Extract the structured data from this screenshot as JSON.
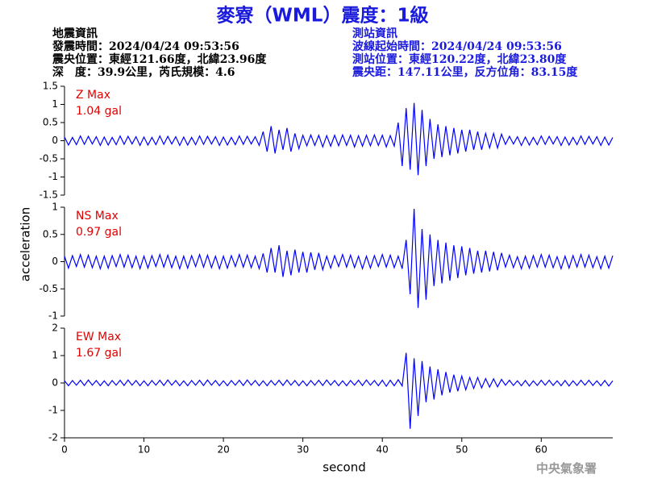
{
  "header": {
    "title": "麥寮（WML）震度：1級",
    "event": [
      "地震資訊",
      "發震時間：2024/04/24 09:53:56",
      "震央位置：東經121.66度，北緯23.96度",
      "深　度：39.9公里，芮氏規模：4.6"
    ],
    "station": [
      "測站資訊",
      "波線起始時間：2024/04/24 09:53:56",
      "測站位置：東經120.22度，北緯23.80度",
      "震央距：147.11公里，反方位角：83.15度"
    ]
  },
  "footer": "中央氣象署",
  "chart_data": [
    {
      "type": "line",
      "label": "Z Max",
      "max_label": "1.04 gal",
      "color": "#0000ff",
      "xlim": [
        0,
        69
      ],
      "ylim": [
        -1.5,
        1.5
      ],
      "yticks": [
        -1.5,
        -1,
        -0.5,
        0,
        0.5,
        1,
        1.5
      ],
      "x": [
        0,
        0.5,
        1,
        1.5,
        2,
        2.5,
        3,
        3.5,
        4,
        4.5,
        5,
        5.5,
        6,
        6.5,
        7,
        7.5,
        8,
        8.5,
        9,
        9.5,
        10,
        10.5,
        11,
        11.5,
        12,
        12.5,
        13,
        13.5,
        14,
        14.5,
        15,
        15.5,
        16,
        16.5,
        17,
        17.5,
        18,
        18.5,
        19,
        19.5,
        20,
        20.5,
        21,
        21.5,
        22,
        22.5,
        23,
        23.5,
        24,
        24.5,
        25,
        25.5,
        26,
        26.5,
        27,
        27.5,
        28,
        28.5,
        29,
        29.5,
        30,
        30.5,
        31,
        31.5,
        32,
        32.5,
        33,
        33.5,
        34,
        34.5,
        35,
        35.5,
        36,
        36.5,
        37,
        37.5,
        38,
        38.5,
        39,
        39.5,
        40,
        40.5,
        41,
        41.5,
        42,
        42.5,
        43,
        43.5,
        44,
        44.5,
        45,
        45.5,
        46,
        46.5,
        47,
        47.5,
        48,
        48.5,
        49,
        49.5,
        50,
        50.5,
        51,
        51.5,
        52,
        52.5,
        53,
        53.5,
        54,
        54.5,
        55,
        55.5,
        56,
        56.5,
        57,
        57.5,
        58,
        58.5,
        59,
        59.5,
        60,
        60.5,
        61,
        61.5,
        62,
        62.5,
        63,
        63.5,
        64,
        64.5,
        65,
        65.5,
        66,
        66.5,
        67,
        67.5,
        68,
        68.5,
        69
      ],
      "values": [
        0.1,
        -0.12,
        0.09,
        -0.11,
        0.13,
        -0.1,
        0.12,
        -0.09,
        0.11,
        -0.13,
        0.1,
        -0.12,
        0.09,
        -0.11,
        0.13,
        -0.1,
        0.12,
        -0.09,
        0.11,
        -0.13,
        0.1,
        -0.12,
        0.09,
        -0.11,
        0.13,
        -0.1,
        0.12,
        -0.09,
        0.11,
        -0.13,
        0.1,
        -0.12,
        0.09,
        -0.11,
        0.13,
        -0.1,
        0.12,
        -0.09,
        0.11,
        -0.13,
        0.1,
        -0.12,
        0.09,
        -0.11,
        0.13,
        -0.1,
        0.12,
        -0.09,
        0.11,
        -0.13,
        0.25,
        -0.3,
        0.4,
        -0.35,
        0.3,
        -0.25,
        0.35,
        -0.3,
        0.2,
        -0.22,
        0.15,
        -0.14,
        0.16,
        -0.13,
        0.15,
        -0.17,
        0.14,
        -0.15,
        0.15,
        -0.14,
        0.16,
        -0.13,
        0.15,
        -0.17,
        0.14,
        -0.15,
        0.15,
        -0.14,
        0.16,
        -0.13,
        0.15,
        -0.17,
        0.14,
        -0.15,
        0.5,
        -0.7,
        0.9,
        -0.8,
        1.04,
        -0.95,
        0.85,
        -0.7,
        0.6,
        -0.5,
        0.45,
        -0.45,
        0.4,
        -0.4,
        0.35,
        -0.35,
        0.3,
        -0.3,
        0.3,
        -0.25,
        0.25,
        -0.25,
        0.2,
        -0.2,
        0.2,
        -0.2,
        0.18,
        -0.1,
        0.12,
        -0.09,
        0.11,
        -0.13,
        0.1,
        -0.12,
        0.09,
        -0.11,
        0.13,
        -0.1,
        0.12,
        -0.09,
        0.11,
        -0.13,
        0.1,
        -0.12,
        0.09,
        -0.11,
        0.13,
        -0.1,
        0.12,
        -0.09,
        0.11,
        -0.13,
        0.1,
        -0.12,
        0.09
      ]
    },
    {
      "type": "line",
      "label": "NS Max",
      "max_label": "0.97 gal",
      "color": "#0000ff",
      "ylabel": "acceleration",
      "xlim": [
        0,
        69
      ],
      "ylim": [
        -1,
        1
      ],
      "yticks": [
        -1,
        -0.5,
        0,
        0.5,
        1
      ],
      "x": [
        0,
        0.5,
        1,
        1.5,
        2,
        2.5,
        3,
        3.5,
        4,
        4.5,
        5,
        5.5,
        6,
        6.5,
        7,
        7.5,
        8,
        8.5,
        9,
        9.5,
        10,
        10.5,
        11,
        11.5,
        12,
        12.5,
        13,
        13.5,
        14,
        14.5,
        15,
        15.5,
        16,
        16.5,
        17,
        17.5,
        18,
        18.5,
        19,
        19.5,
        20,
        20.5,
        21,
        21.5,
        22,
        22.5,
        23,
        23.5,
        24,
        24.5,
        25,
        25.5,
        26,
        26.5,
        27,
        27.5,
        28,
        28.5,
        29,
        29.5,
        30,
        30.5,
        31,
        31.5,
        32,
        32.5,
        33,
        33.5,
        34,
        34.5,
        35,
        35.5,
        36,
        36.5,
        37,
        37.5,
        38,
        38.5,
        39,
        39.5,
        40,
        40.5,
        41,
        41.5,
        42,
        42.5,
        43,
        43.5,
        44,
        44.5,
        45,
        45.5,
        46,
        46.5,
        47,
        47.5,
        48,
        48.5,
        49,
        49.5,
        50,
        50.5,
        51,
        51.5,
        52,
        52.5,
        53,
        53.5,
        54,
        54.5,
        55,
        55.5,
        56,
        56.5,
        57,
        57.5,
        58,
        58.5,
        59,
        59.5,
        60,
        60.5,
        61,
        61.5,
        62,
        62.5,
        63,
        63.5,
        64,
        64.5,
        65,
        65.5,
        66,
        66.5,
        67,
        67.5,
        68,
        68.5,
        69
      ],
      "values": [
        0.1,
        -0.12,
        0.11,
        -0.09,
        0.13,
        -0.1,
        0.12,
        -0.11,
        0.1,
        -0.13,
        0.1,
        -0.12,
        0.11,
        -0.09,
        0.13,
        -0.1,
        0.12,
        -0.11,
        0.1,
        -0.13,
        0.1,
        -0.12,
        0.11,
        -0.09,
        0.13,
        -0.1,
        0.12,
        -0.11,
        0.1,
        -0.13,
        0.1,
        -0.12,
        0.11,
        -0.09,
        0.13,
        -0.1,
        0.12,
        -0.11,
        0.1,
        -0.13,
        0.1,
        -0.12,
        0.11,
        -0.09,
        0.13,
        -0.1,
        0.12,
        -0.11,
        0.1,
        -0.13,
        0.15,
        -0.2,
        0.25,
        -0.2,
        0.3,
        -0.28,
        0.2,
        -0.25,
        0.22,
        -0.2,
        0.18,
        -0.2,
        0.17,
        -0.15,
        0.16,
        -0.15,
        0.1,
        -0.12,
        0.11,
        -0.09,
        0.13,
        -0.1,
        0.12,
        -0.11,
        0.1,
        -0.13,
        0.1,
        -0.12,
        0.11,
        -0.09,
        0.13,
        -0.1,
        0.12,
        -0.11,
        0.1,
        -0.13,
        0.4,
        -0.6,
        0.97,
        -0.85,
        0.6,
        -0.7,
        0.5,
        -0.45,
        0.4,
        -0.4,
        0.35,
        -0.35,
        0.3,
        -0.3,
        0.28,
        -0.25,
        0.25,
        -0.22,
        0.2,
        -0.2,
        0.2,
        -0.18,
        0.18,
        -0.16,
        0.16,
        -0.1,
        0.12,
        -0.11,
        0.09,
        -0.13,
        0.1,
        -0.12,
        0.11,
        -0.1,
        0.13,
        -0.1,
        0.12,
        -0.11,
        0.09,
        -0.13,
        0.1,
        -0.12,
        0.11,
        -0.1,
        0.13,
        -0.1,
        0.12,
        -0.11,
        0.09,
        -0.13,
        0.1,
        -0.12,
        0.11
      ]
    },
    {
      "type": "line",
      "label": "EW Max",
      "max_label": "1.67 gal",
      "color": "#0000ff",
      "xlabel": "second",
      "xlim": [
        0,
        69
      ],
      "xticks": [
        0,
        10,
        20,
        30,
        40,
        50,
        60
      ],
      "ylim": [
        -2,
        2
      ],
      "yticks": [
        -2,
        -1,
        0,
        1,
        2
      ],
      "x": [
        0,
        0.5,
        1,
        1.5,
        2,
        2.5,
        3,
        3.5,
        4,
        4.5,
        5,
        5.5,
        6,
        6.5,
        7,
        7.5,
        8,
        8.5,
        9,
        9.5,
        10,
        10.5,
        11,
        11.5,
        12,
        12.5,
        13,
        13.5,
        14,
        14.5,
        15,
        15.5,
        16,
        16.5,
        17,
        17.5,
        18,
        18.5,
        19,
        19.5,
        20,
        20.5,
        21,
        21.5,
        22,
        22.5,
        23,
        23.5,
        24,
        24.5,
        25,
        25.5,
        26,
        26.5,
        27,
        27.5,
        28,
        28.5,
        29,
        29.5,
        30,
        30.5,
        31,
        31.5,
        32,
        32.5,
        33,
        33.5,
        34,
        34.5,
        35,
        35.5,
        36,
        36.5,
        37,
        37.5,
        38,
        38.5,
        39,
        39.5,
        40,
        40.5,
        41,
        41.5,
        42,
        42.5,
        43,
        43.5,
        44,
        44.5,
        45,
        45.5,
        46,
        46.5,
        47,
        47.5,
        48,
        48.5,
        49,
        49.5,
        50,
        50.5,
        51,
        51.5,
        52,
        52.5,
        53,
        53.5,
        54,
        54.5,
        55,
        55.5,
        56,
        56.5,
        57,
        57.5,
        58,
        58.5,
        59,
        59.5,
        60,
        60.5,
        61,
        61.5,
        62,
        62.5,
        63,
        63.5,
        64,
        64.5,
        65,
        65.5,
        66,
        66.5,
        67,
        67.5,
        68,
        68.5,
        69
      ],
      "values": [
        0.08,
        -0.1,
        0.09,
        -0.08,
        0.1,
        -0.09,
        0.11,
        -0.08,
        0.09,
        -0.1,
        0.08,
        -0.1,
        0.09,
        -0.08,
        0.1,
        -0.09,
        0.11,
        -0.08,
        0.09,
        -0.1,
        0.08,
        -0.1,
        0.09,
        -0.08,
        0.1,
        -0.09,
        0.11,
        -0.08,
        0.09,
        -0.1,
        0.08,
        -0.1,
        0.09,
        -0.08,
        0.1,
        -0.09,
        0.11,
        -0.08,
        0.09,
        -0.1,
        0.08,
        -0.1,
        0.09,
        -0.08,
        0.1,
        -0.09,
        0.11,
        -0.08,
        0.09,
        -0.1,
        0.08,
        -0.1,
        0.09,
        -0.08,
        0.1,
        -0.09,
        0.11,
        -0.08,
        0.09,
        -0.1,
        0.08,
        -0.1,
        0.09,
        -0.08,
        0.1,
        -0.09,
        0.11,
        -0.08,
        0.09,
        -0.1,
        0.08,
        -0.1,
        0.09,
        -0.08,
        0.1,
        -0.09,
        0.11,
        -0.08,
        0.09,
        -0.1,
        0.1,
        -0.12,
        0.1,
        -0.1,
        0.12,
        -0.11,
        1.1,
        -1.67,
        0.9,
        -1.2,
        0.8,
        -0.7,
        0.6,
        -0.6,
        0.5,
        -0.45,
        0.4,
        -0.35,
        0.3,
        -0.3,
        0.25,
        -0.25,
        0.2,
        -0.2,
        0.2,
        -0.18,
        0.16,
        -0.15,
        0.15,
        -0.14,
        0.13,
        -0.08,
        0.1,
        -0.09,
        0.08,
        -0.1,
        0.09,
        -0.11,
        0.08,
        -0.09,
        0.1,
        -0.08,
        0.1,
        -0.09,
        0.08,
        -0.1,
        0.09,
        -0.11,
        0.08,
        -0.09,
        0.1,
        -0.08,
        0.1,
        -0.09,
        0.08,
        -0.1,
        0.09,
        -0.11,
        0.08
      ]
    }
  ]
}
